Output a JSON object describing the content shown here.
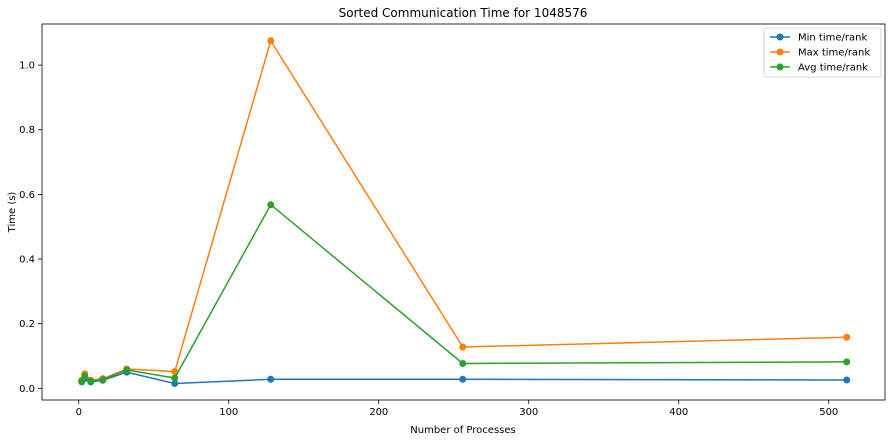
{
  "chart_data": {
    "type": "line",
    "title": "Sorted Communication Time for 1048576",
    "xlabel": "Number of Processes",
    "ylabel": "Time (s)",
    "xlim": [
      -24.5,
      537.5
    ],
    "ylim": [
      -0.036,
      1.127
    ],
    "xticks": [
      0,
      100,
      200,
      300,
      400,
      500
    ],
    "yticks": [
      0.0,
      0.2,
      0.4,
      0.6,
      0.8,
      1.0
    ],
    "ytick_labels": [
      "0.0",
      "0.2",
      "0.4",
      "0.6",
      "0.8",
      "1.0"
    ],
    "grid": false,
    "legend_position": "top-right",
    "x": [
      2,
      4,
      8,
      16,
      32,
      64,
      128,
      256,
      512
    ],
    "series": [
      {
        "name": "Min time/rank",
        "color": "#1f77b4",
        "values": [
          0.02,
          0.03,
          0.02,
          0.025,
          0.05,
          0.015,
          0.028,
          0.028,
          0.026
        ]
      },
      {
        "name": "Max time/rank",
        "color": "#ff7f0e",
        "values": [
          0.025,
          0.045,
          0.025,
          0.03,
          0.06,
          0.052,
          1.075,
          0.128,
          0.158
        ]
      },
      {
        "name": "Avg time/rank",
        "color": "#2ca02c",
        "values": [
          0.022,
          0.038,
          0.022,
          0.027,
          0.057,
          0.032,
          0.568,
          0.077,
          0.082
        ]
      }
    ]
  }
}
